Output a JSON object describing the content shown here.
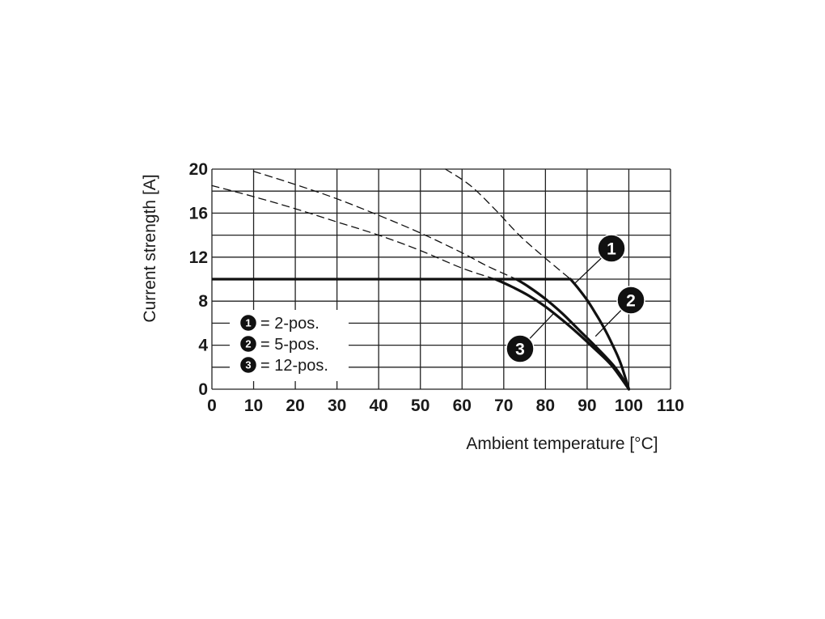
{
  "chart_data": {
    "type": "line",
    "xlabel": "Ambient temperature [°C]",
    "ylabel": "Current strength [A]",
    "xlim": [
      0,
      110
    ],
    "ylim": [
      0,
      20
    ],
    "x_ticks": [
      0,
      10,
      20,
      30,
      40,
      50,
      60,
      70,
      80,
      90,
      100,
      110
    ],
    "y_ticks": [
      0,
      4,
      8,
      12,
      16,
      20
    ],
    "grid": true,
    "grid_x_step": 10,
    "grid_y_step": 2,
    "legend_position": "bottom-left",
    "legend": [
      {
        "marker": "1",
        "label": "= 2-pos."
      },
      {
        "marker": "2",
        "label": "= 5-pos."
      },
      {
        "marker": "3",
        "label": "= 12-pos."
      }
    ],
    "limit_line": {
      "y": 10,
      "x_range": [
        0,
        86
      ]
    },
    "series": [
      {
        "marker": "1",
        "style": "solid",
        "points": [
          [
            86,
            10
          ],
          [
            88,
            9.1
          ],
          [
            90,
            8.1
          ],
          [
            92,
            6.9
          ],
          [
            94,
            5.6
          ],
          [
            96,
            4.1
          ],
          [
            98,
            2.4
          ],
          [
            100,
            0
          ]
        ]
      },
      {
        "marker": "2",
        "style": "solid",
        "points": [
          [
            73,
            10
          ],
          [
            76,
            9.3
          ],
          [
            80,
            8.2
          ],
          [
            84,
            6.9
          ],
          [
            88,
            5.4
          ],
          [
            92,
            3.9
          ],
          [
            96,
            2.3
          ],
          [
            98,
            1.3
          ],
          [
            100,
            0
          ]
        ]
      },
      {
        "marker": "3",
        "style": "solid",
        "points": [
          [
            68,
            10
          ],
          [
            72,
            9.3
          ],
          [
            76,
            8.5
          ],
          [
            80,
            7.5
          ],
          [
            84,
            6.3
          ],
          [
            88,
            5.0
          ],
          [
            92,
            3.6
          ],
          [
            96,
            2.1
          ],
          [
            100,
            0
          ]
        ]
      },
      {
        "marker": "1",
        "style": "dashed",
        "points": [
          [
            56,
            20
          ],
          [
            62,
            18.5
          ],
          [
            68,
            16.3
          ],
          [
            74,
            13.9
          ],
          [
            80,
            11.9
          ],
          [
            86,
            10
          ]
        ]
      },
      {
        "marker": "2",
        "style": "dashed",
        "points": [
          [
            10,
            19.8
          ],
          [
            20,
            18.6
          ],
          [
            30,
            17.3
          ],
          [
            40,
            15.8
          ],
          [
            50,
            14.2
          ],
          [
            60,
            12.4
          ],
          [
            66,
            11.2
          ],
          [
            73,
            10
          ]
        ]
      },
      {
        "marker": "3",
        "style": "dashed",
        "points": [
          [
            0,
            18.5
          ],
          [
            10,
            17.5
          ],
          [
            20,
            16.4
          ],
          [
            30,
            15.2
          ],
          [
            40,
            14.0
          ],
          [
            50,
            12.6
          ],
          [
            60,
            11.0
          ],
          [
            68,
            10
          ]
        ]
      }
    ],
    "callouts": [
      {
        "marker": "1",
        "leader_to": [
          87,
          9.6
        ]
      },
      {
        "marker": "2",
        "leader_to": [
          92,
          4.8
        ]
      },
      {
        "marker": "3",
        "leader_to": [
          82,
          6.9
        ]
      }
    ]
  }
}
